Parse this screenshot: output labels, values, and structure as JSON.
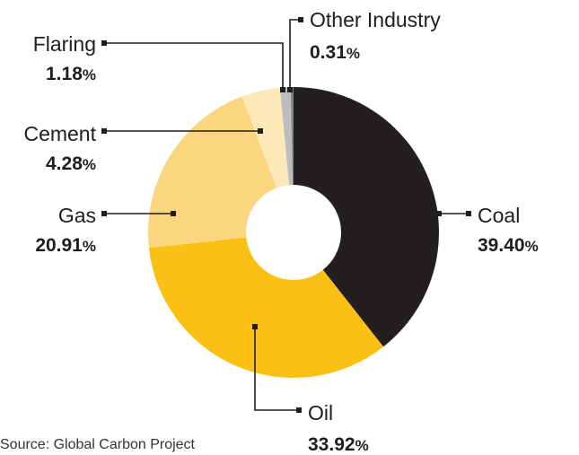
{
  "chart_data": {
    "type": "pie",
    "donut": true,
    "start_angle_deg": 0,
    "direction": "clockwise",
    "slices": [
      {
        "label": "Coal",
        "value": 39.4,
        "display": "39.40",
        "unit": "%",
        "color": "#231f20"
      },
      {
        "label": "Oil",
        "value": 33.92,
        "display": "33.92",
        "unit": "%",
        "color": "#fbc014"
      },
      {
        "label": "Gas",
        "value": 20.91,
        "display": "20.91",
        "unit": "%",
        "color": "#fcd67e"
      },
      {
        "label": "Cement",
        "value": 4.28,
        "display": "4.28",
        "unit": "%",
        "color": "#fde8b8"
      },
      {
        "label": "Flaring",
        "value": 1.18,
        "display": "1.18",
        "unit": "%",
        "color": "#bcbdc0"
      },
      {
        "label": "Other Industry",
        "value": 0.31,
        "display": "0.31",
        "unit": "%",
        "color": "#808285"
      }
    ],
    "source": "Source: Global Carbon Project"
  }
}
